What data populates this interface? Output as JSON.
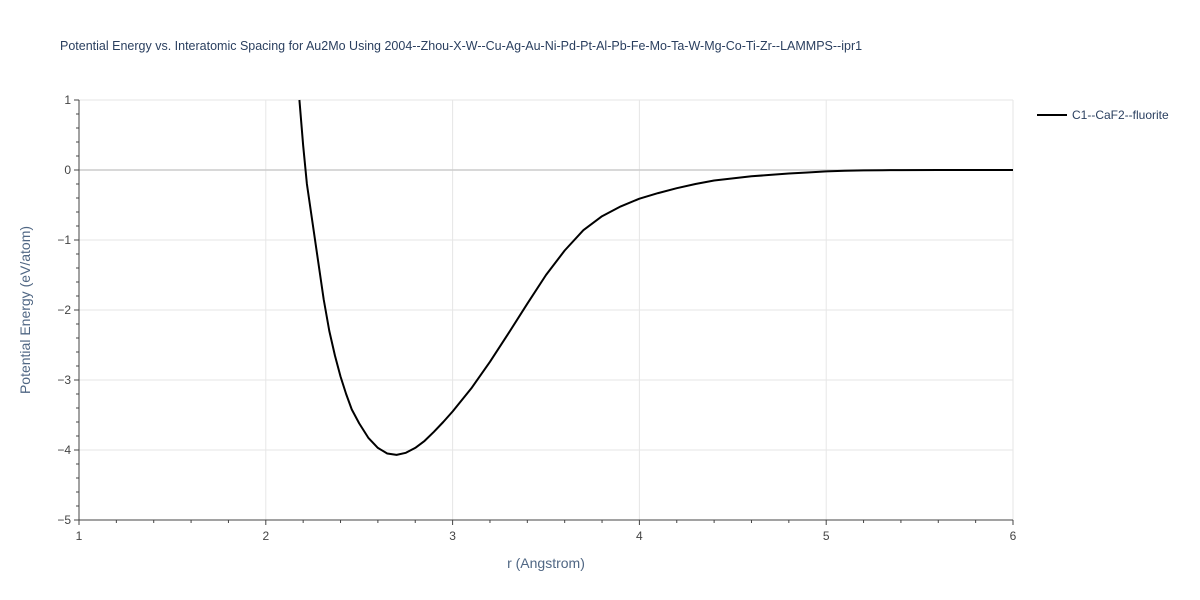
{
  "chart_data": {
    "type": "line",
    "title": "Potential Energy vs. Interatomic Spacing for Au2Mo Using 2004--Zhou-X-W--Cu-Ag-Au-Ni-Pd-Pt-Al-Pb-Fe-Mo-Ta-W-Mg-Co-Ti-Zr--LAMMPS--ipr1",
    "xlabel": "r (Angstrom)",
    "ylabel": "Potential Energy (eV/atom)",
    "xlim": [
      1,
      6
    ],
    "ylim": [
      -5,
      1
    ],
    "xticks": [
      1,
      2,
      3,
      4,
      5,
      6
    ],
    "yticks": [
      -5,
      -4,
      -3,
      -2,
      -1,
      0,
      1
    ],
    "ytick_labels": [
      "−5",
      "−4",
      "−3",
      "−2",
      "−1",
      "0",
      "1"
    ],
    "grid": true,
    "legend_position": "top-right",
    "series": [
      {
        "name": "C1--CaF2--fluorite",
        "color": "#000000",
        "x": [
          2.18,
          2.2,
          2.22,
          2.25,
          2.28,
          2.31,
          2.34,
          2.37,
          2.4,
          2.43,
          2.46,
          2.5,
          2.55,
          2.6,
          2.65,
          2.7,
          2.75,
          2.8,
          2.85,
          2.9,
          2.95,
          3.0,
          3.1,
          3.2,
          3.3,
          3.4,
          3.5,
          3.6,
          3.7,
          3.8,
          3.9,
          4.0,
          4.1,
          4.2,
          4.3,
          4.4,
          4.5,
          4.6,
          4.7,
          4.8,
          4.9,
          5.0,
          5.1,
          5.2,
          5.3,
          5.4,
          5.6,
          5.8,
          6.0
        ],
        "y": [
          1.0,
          0.35,
          -0.2,
          -0.75,
          -1.3,
          -1.85,
          -2.3,
          -2.65,
          -2.95,
          -3.2,
          -3.42,
          -3.62,
          -3.83,
          -3.97,
          -4.05,
          -4.07,
          -4.04,
          -3.97,
          -3.87,
          -3.74,
          -3.6,
          -3.45,
          -3.12,
          -2.74,
          -2.33,
          -1.91,
          -1.5,
          -1.15,
          -0.86,
          -0.66,
          -0.52,
          -0.41,
          -0.33,
          -0.26,
          -0.2,
          -0.15,
          -0.12,
          -0.09,
          -0.07,
          -0.05,
          -0.035,
          -0.02,
          -0.01,
          -0.005,
          -0.003,
          -0.001,
          0.0,
          0.0,
          0.0
        ]
      }
    ]
  }
}
